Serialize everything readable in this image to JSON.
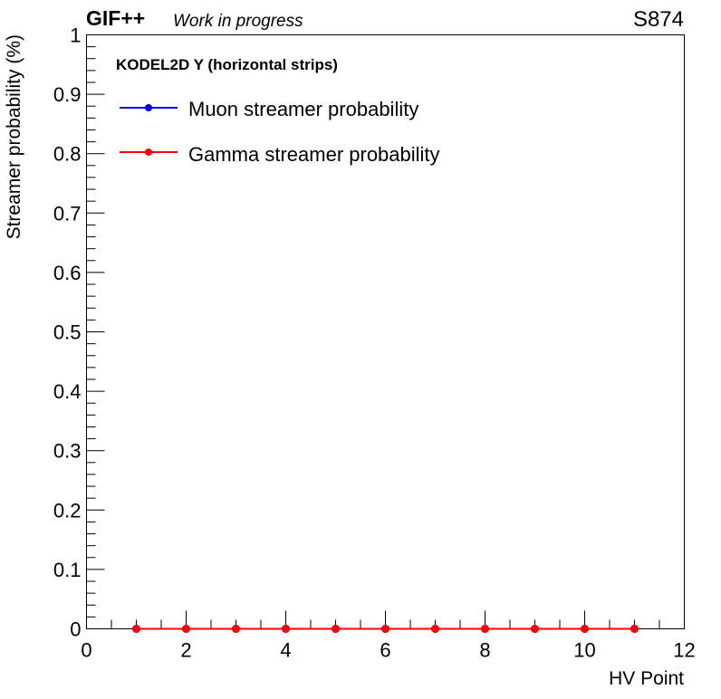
{
  "header": {
    "experiment": "GIF++",
    "status": "Work in progress",
    "run_id": "S874"
  },
  "legend": {
    "header": "KODEL2D Y (horizontal strips)"
  },
  "chart_data": {
    "type": "line",
    "title": "",
    "xlabel": "HV Point",
    "ylabel": "Streamer probability (%)",
    "xlim": [
      0,
      12
    ],
    "ylim": [
      0,
      1
    ],
    "x_ticks": [
      0,
      2,
      4,
      6,
      8,
      10,
      12
    ],
    "y_ticks": [
      0,
      0.1,
      0.2,
      0.3,
      0.4,
      0.5,
      0.6,
      0.7,
      0.8,
      0.9,
      1
    ],
    "x_tick_labels": [
      "0",
      "2",
      "4",
      "6",
      "8",
      "10",
      "12"
    ],
    "y_tick_labels": [
      "0",
      "0.1",
      "0.2",
      "0.3",
      "0.4",
      "0.5",
      "0.6",
      "0.7",
      "0.8",
      "0.9",
      "1"
    ],
    "grid": false,
    "legend_position": "top-left",
    "series": [
      {
        "name": "Muon streamer probability",
        "color": "#0000ff",
        "x": [
          1,
          2,
          3,
          4,
          5,
          6,
          7,
          8,
          9,
          10,
          11
        ],
        "y": [
          0,
          0,
          0,
          0,
          0,
          0,
          0,
          0,
          0,
          0,
          0
        ]
      },
      {
        "name": "Gamma streamer probability",
        "color": "#ff0000",
        "x": [
          1,
          2,
          3,
          4,
          5,
          6,
          7,
          8,
          9,
          10,
          11
        ],
        "y": [
          0,
          0,
          0,
          0,
          0,
          0,
          0,
          0,
          0,
          0,
          0
        ]
      }
    ]
  }
}
